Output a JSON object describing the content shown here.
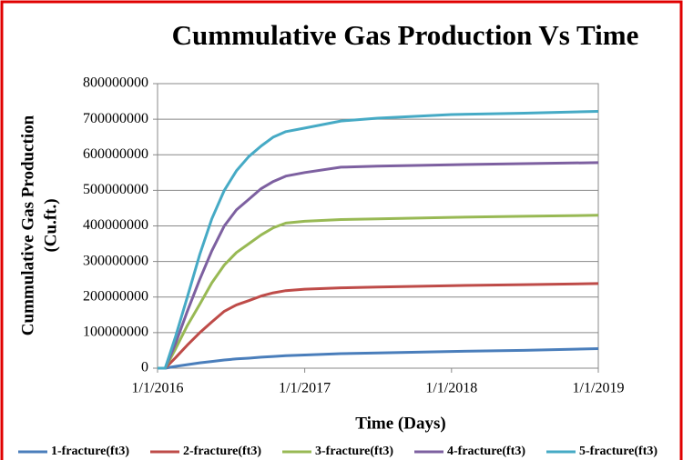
{
  "chart_data": {
    "type": "line",
    "title": "Cummulative Gas Production Vs Time",
    "x_label": "Time (Days)",
    "y_label": [
      "Cummulative Gas Production",
      "(Cu.ft.)"
    ],
    "x": [
      "1/1/2016",
      "1/20/2016",
      "2/15/2016",
      "3/15/2016",
      "4/15/2016",
      "5/15/2016",
      "6/15/2016",
      "7/15/2016",
      "8/15/2016",
      "9/15/2016",
      "10/15/2016",
      "11/15/2016",
      "1/1/2017",
      "4/1/2017",
      "7/1/2017",
      "1/1/2018",
      "7/1/2018",
      "1/1/2019"
    ],
    "series": [
      {
        "name": "1-fracture(ft3)",
        "color": "#4a7ebb",
        "values": [
          0,
          0,
          5000000,
          10000000,
          15000000,
          19000000,
          23000000,
          26000000,
          28000000,
          31000000,
          33000000,
          35000000,
          37000000,
          41000000,
          43000000,
          47000000,
          50000000,
          55000000
        ]
      },
      {
        "name": "2-fracture(ft3)",
        "color": "#be4b48",
        "values": [
          0,
          0,
          30000000,
          65000000,
          100000000,
          130000000,
          160000000,
          178000000,
          190000000,
          203000000,
          212000000,
          218000000,
          222000000,
          226000000,
          228000000,
          232000000,
          235000000,
          238000000
        ]
      },
      {
        "name": "3-fracture(ft3)",
        "color": "#98b954",
        "values": [
          0,
          0,
          55000000,
          120000000,
          180000000,
          240000000,
          290000000,
          325000000,
          350000000,
          375000000,
          395000000,
          408000000,
          413000000,
          418000000,
          420000000,
          424000000,
          427000000,
          430000000
        ]
      },
      {
        "name": "4-fracture(ft3)",
        "color": "#7d60a0",
        "values": [
          0,
          0,
          70000000,
          160000000,
          250000000,
          330000000,
          400000000,
          445000000,
          475000000,
          505000000,
          525000000,
          540000000,
          550000000,
          565000000,
          568000000,
          572000000,
          575000000,
          578000000
        ]
      },
      {
        "name": "5-fracture(ft3)",
        "color": "#46aac5",
        "values": [
          0,
          0,
          90000000,
          200000000,
          320000000,
          420000000,
          500000000,
          555000000,
          595000000,
          625000000,
          650000000,
          665000000,
          675000000,
          695000000,
          703000000,
          713000000,
          717000000,
          722000000
        ]
      }
    ],
    "xlim": [
      "1/1/2016",
      "1/1/2019"
    ],
    "xticks": [
      "1/1/2016",
      "1/1/2017",
      "1/1/2018",
      "1/1/2019"
    ],
    "ylim": [
      0,
      800000000
    ],
    "yticks": [
      0,
      100000000,
      200000000,
      300000000,
      400000000,
      500000000,
      600000000,
      700000000,
      800000000
    ],
    "grid": true
  }
}
